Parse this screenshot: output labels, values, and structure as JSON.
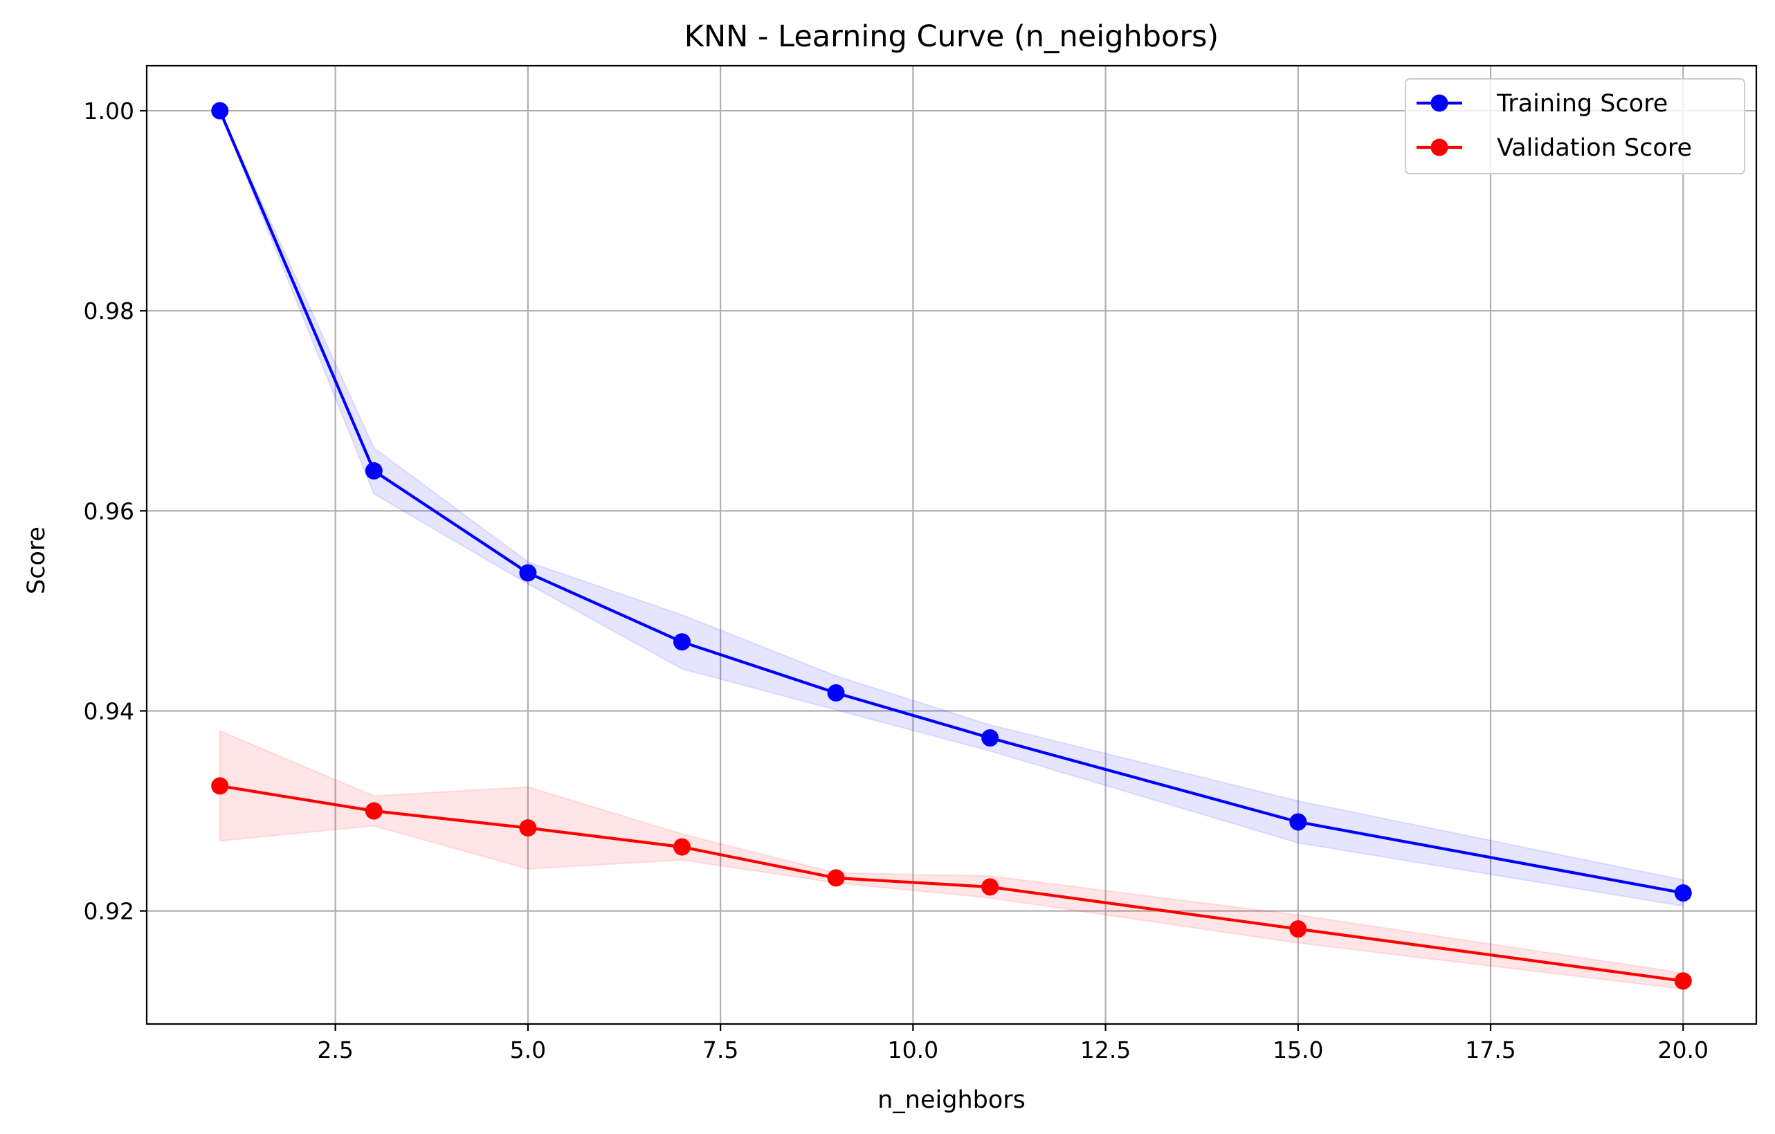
{
  "chart_data": {
    "type": "line",
    "title": "KNN - Learning Curve (n_neighbors)",
    "xlabel": "n_neighbors",
    "ylabel": "Score",
    "xlim": [
      0.05,
      20.95
    ],
    "ylim": [
      0.9087,
      1.0045
    ],
    "xticks": [
      2.5,
      5.0,
      7.5,
      10.0,
      12.5,
      15.0,
      17.5,
      20.0
    ],
    "xtick_labels": [
      "2.5",
      "5.0",
      "7.5",
      "10.0",
      "12.5",
      "15.0",
      "17.5",
      "20.0"
    ],
    "yticks": [
      0.92,
      0.94,
      0.96,
      0.98,
      1.0
    ],
    "ytick_labels": [
      "0.92",
      "0.94",
      "0.96",
      "0.98",
      "1.00"
    ],
    "grid": true,
    "legend_position": "top-right",
    "x": [
      1,
      3,
      5,
      7,
      9,
      11,
      15,
      20
    ],
    "series": [
      {
        "name": "Training Score",
        "color": "#0000ff",
        "band_color": "#0000ff",
        "values": [
          1.0,
          0.964,
          0.9538,
          0.9469,
          0.9418,
          0.9373,
          0.9289,
          0.9218
        ],
        "band_lower": [
          1.0,
          0.9617,
          0.9527,
          0.9442,
          0.9401,
          0.936,
          0.9268,
          0.9205
        ],
        "band_upper": [
          1.0,
          0.9663,
          0.9549,
          0.9496,
          0.9435,
          0.9386,
          0.931,
          0.9231
        ]
      },
      {
        "name": "Validation Score",
        "color": "#ff0000",
        "band_color": "#ff0000",
        "values": [
          0.9325,
          0.93,
          0.9283,
          0.9264,
          0.9233,
          0.9224,
          0.9182,
          0.913
        ],
        "band_lower": [
          0.927,
          0.9285,
          0.9242,
          0.9251,
          0.9228,
          0.9213,
          0.9168,
          0.9122
        ],
        "band_upper": [
          0.938,
          0.9315,
          0.9324,
          0.9277,
          0.9238,
          0.9235,
          0.9196,
          0.9138
        ]
      }
    ]
  }
}
